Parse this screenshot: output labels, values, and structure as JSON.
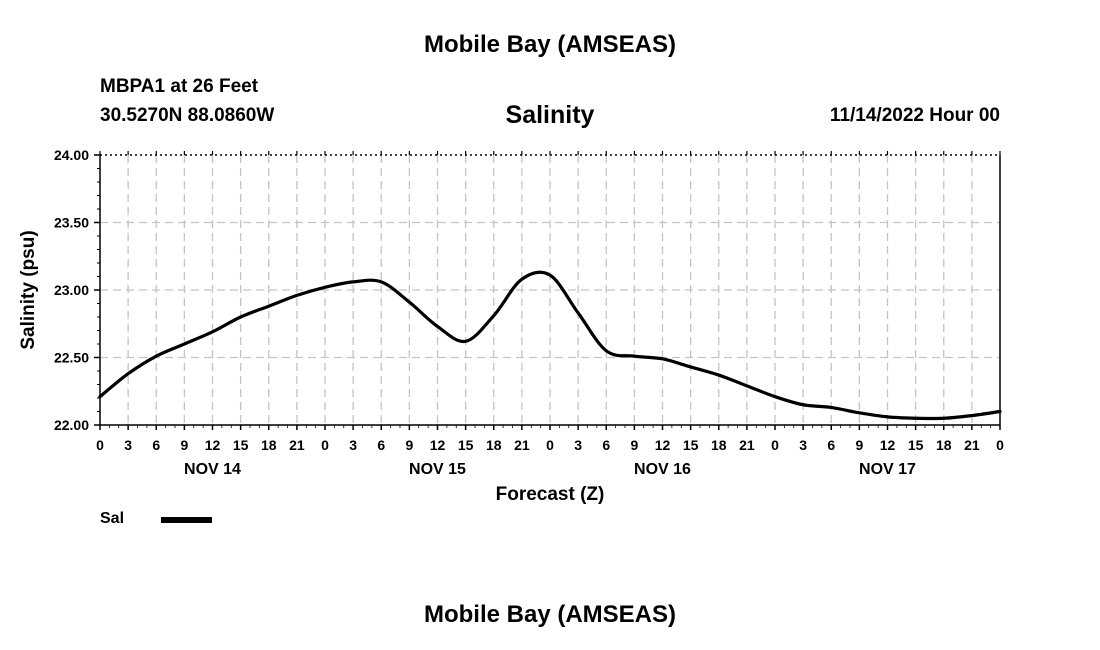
{
  "header": {
    "title": "Mobile Bay (AMSEAS)",
    "station": "MBPA1 at 26 Feet",
    "coordinates": "30.5270N  88.0860W",
    "chart_title": "Salinity",
    "run_time": "11/14/2022 Hour 00"
  },
  "legend": {
    "label": "Sal"
  },
  "footer": {
    "title": "Mobile Bay (AMSEAS)"
  },
  "chart_data": {
    "type": "line",
    "title": "Salinity",
    "xlabel": "Forecast (Z)",
    "ylabel": "Salinity (psu)",
    "x_unit": "hours from 11/14/2022 00Z",
    "xlim": [
      0,
      96
    ],
    "ylim": [
      22.0,
      24.0
    ],
    "y_ticks": [
      "22.00",
      "22.50",
      "23.00",
      "23.50",
      "24.00"
    ],
    "y_tick_values": [
      22.0,
      22.5,
      23.0,
      23.5,
      24.0
    ],
    "x_tick_labels": [
      "0",
      "3",
      "6",
      "9",
      "12",
      "15",
      "18",
      "21",
      "0",
      "3",
      "6",
      "9",
      "12",
      "15",
      "18",
      "21",
      "0",
      "3",
      "6",
      "9",
      "12",
      "15",
      "18",
      "21",
      "0",
      "3",
      "6",
      "9",
      "12",
      "15",
      "18",
      "21",
      "0"
    ],
    "day_labels": [
      "NOV 14",
      "NOV 15",
      "NOV 16",
      "NOV 17"
    ],
    "grid": true,
    "series": [
      {
        "name": "Sal",
        "color": "#000000",
        "x": [
          0,
          3,
          6,
          9,
          12,
          15,
          18,
          21,
          24,
          27,
          30,
          33,
          36,
          39,
          42,
          45,
          48,
          51,
          54,
          57,
          60,
          63,
          66,
          69,
          72,
          75,
          78,
          81,
          84,
          87,
          90,
          93,
          96
        ],
        "values": [
          22.21,
          22.38,
          22.51,
          22.6,
          22.69,
          22.8,
          22.88,
          22.96,
          23.02,
          23.06,
          23.06,
          22.91,
          22.73,
          22.62,
          22.81,
          23.08,
          23.11,
          22.83,
          22.55,
          22.51,
          22.49,
          22.43,
          22.37,
          22.29,
          22.21,
          22.15,
          22.13,
          22.09,
          22.06,
          22.05,
          22.05,
          22.07,
          22.1
        ]
      }
    ]
  }
}
